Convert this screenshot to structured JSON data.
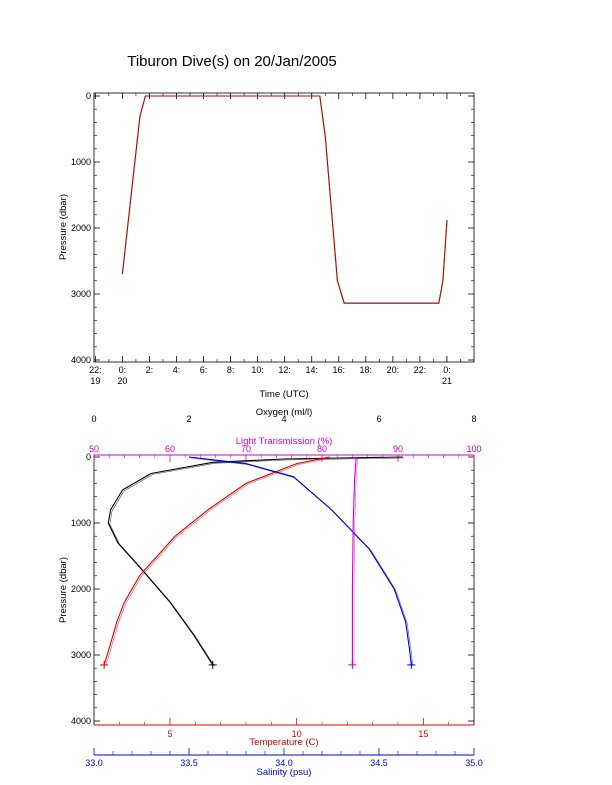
{
  "page": {
    "title": "Tiburon Dive(s) on 20/Jan/2005"
  },
  "chart_data": [
    {
      "type": "line",
      "title": "Tiburon Dive(s) on 20/Jan/2005",
      "xlabel": "Time (UTC)",
      "ylabel": "Pressure (dbar)",
      "y_inverted": true,
      "ylim": [
        0,
        4000
      ],
      "y_ticks": [
        "0",
        "1000",
        "2000",
        "3000",
        "4000"
      ],
      "x_range_hours": [
        -2.1,
        26
      ],
      "x_ticks": [
        {
          "h": -2,
          "label": "22:",
          "sub": "19"
        },
        {
          "h": 0,
          "label": "0:",
          "sub": "20"
        },
        {
          "h": 2,
          "label": "2:",
          "sub": ""
        },
        {
          "h": 4,
          "label": "4:",
          "sub": ""
        },
        {
          "h": 6,
          "label": "6:",
          "sub": ""
        },
        {
          "h": 8,
          "label": "8:",
          "sub": ""
        },
        {
          "h": 10,
          "label": "10:",
          "sub": ""
        },
        {
          "h": 12,
          "label": "12:",
          "sub": ""
        },
        {
          "h": 14,
          "label": "14:",
          "sub": ""
        },
        {
          "h": 16,
          "label": "16:",
          "sub": ""
        },
        {
          "h": 18,
          "label": "18:",
          "sub": ""
        },
        {
          "h": 20,
          "label": "20:",
          "sub": ""
        },
        {
          "h": 22,
          "label": "22:",
          "sub": ""
        },
        {
          "h": 24,
          "label": "0:",
          "sub": "21"
        }
      ],
      "series": [
        {
          "color": "#000000",
          "x": [
            0.0,
            0.7,
            1.3,
            1.7,
            8.0,
            14.4,
            14.6,
            15.0,
            15.9,
            16.4,
            23.4,
            23.7,
            24.0
          ],
          "y": [
            2700,
            1400,
            300,
            0,
            0,
            0,
            0,
            600,
            2800,
            3140,
            3140,
            2800,
            1880
          ]
        },
        {
          "color": "#ff0000",
          "x": [
            0.0,
            0.7,
            1.3,
            1.7,
            8.0,
            14.4,
            14.6,
            15.0,
            15.9,
            16.4,
            23.4,
            23.7,
            24.0
          ],
          "y": [
            2700,
            1400,
            300,
            0,
            0,
            0,
            0,
            600,
            2800,
            3140,
            3140,
            2800,
            1880
          ]
        }
      ]
    },
    {
      "type": "line",
      "ylabel": "Pressure (dbar)",
      "y_inverted": true,
      "ylim": [
        0,
        4000
      ],
      "y_ticks": [
        "0",
        "1000",
        "2000",
        "3000",
        "4000"
      ],
      "axes": {
        "oxygen": {
          "label": "Oxygen (ml/l)",
          "range": [
            0,
            8
          ],
          "ticks": [
            "0",
            "2",
            "4",
            "6",
            "8"
          ],
          "color": "#000000"
        },
        "light": {
          "label": "Light Transmission (%)",
          "range": [
            50,
            100
          ],
          "ticks": [
            "50",
            "60",
            "70",
            "80",
            "90",
            "100"
          ],
          "color": "#cc00cc"
        },
        "temperature": {
          "label": "Temperature (C)",
          "range": [
            2,
            17
          ],
          "ticks": [
            "5",
            "10",
            "15"
          ],
          "color": "#dd0000"
        },
        "salinity": {
          "label": "Salinity (psu)",
          "range": [
            33.0,
            35.0
          ],
          "ticks": [
            "33.0",
            "33.5",
            "34.0",
            "34.5",
            "35.0"
          ],
          "color": "#0000cc"
        }
      },
      "series": [
        {
          "axis": "oxygen",
          "color": "#000000",
          "x": [
            6.5,
            4.0,
            2.5,
            1.2,
            0.6,
            0.35,
            0.3,
            0.5,
            1.0,
            1.6,
            2.1,
            2.5
          ],
          "y": [
            0,
            30,
            80,
            250,
            500,
            800,
            1000,
            1300,
            1700,
            2200,
            2700,
            3150
          ]
        },
        {
          "axis": "temperature",
          "color": "#dd0000",
          "x": [
            11.3,
            10.0,
            8.0,
            6.5,
            5.2,
            4.5,
            3.8,
            3.2,
            2.9,
            2.6,
            2.4
          ],
          "y": [
            0,
            100,
            400,
            800,
            1200,
            1500,
            1800,
            2200,
            2500,
            2900,
            3150
          ]
        },
        {
          "axis": "salinity",
          "color": "#0000cc",
          "x": [
            33.5,
            33.8,
            34.05,
            34.25,
            34.45,
            34.58,
            34.64,
            34.66,
            34.67
          ],
          "y": [
            0,
            100,
            300,
            800,
            1400,
            2000,
            2500,
            2900,
            3150
          ]
        },
        {
          "axis": "light",
          "color": "#cc00cc",
          "x": [
            84.5,
            84.3,
            84.1,
            84.0,
            84.0,
            84.0
          ],
          "y": [
            0,
            300,
            1000,
            2000,
            3000,
            3150
          ]
        }
      ]
    }
  ]
}
